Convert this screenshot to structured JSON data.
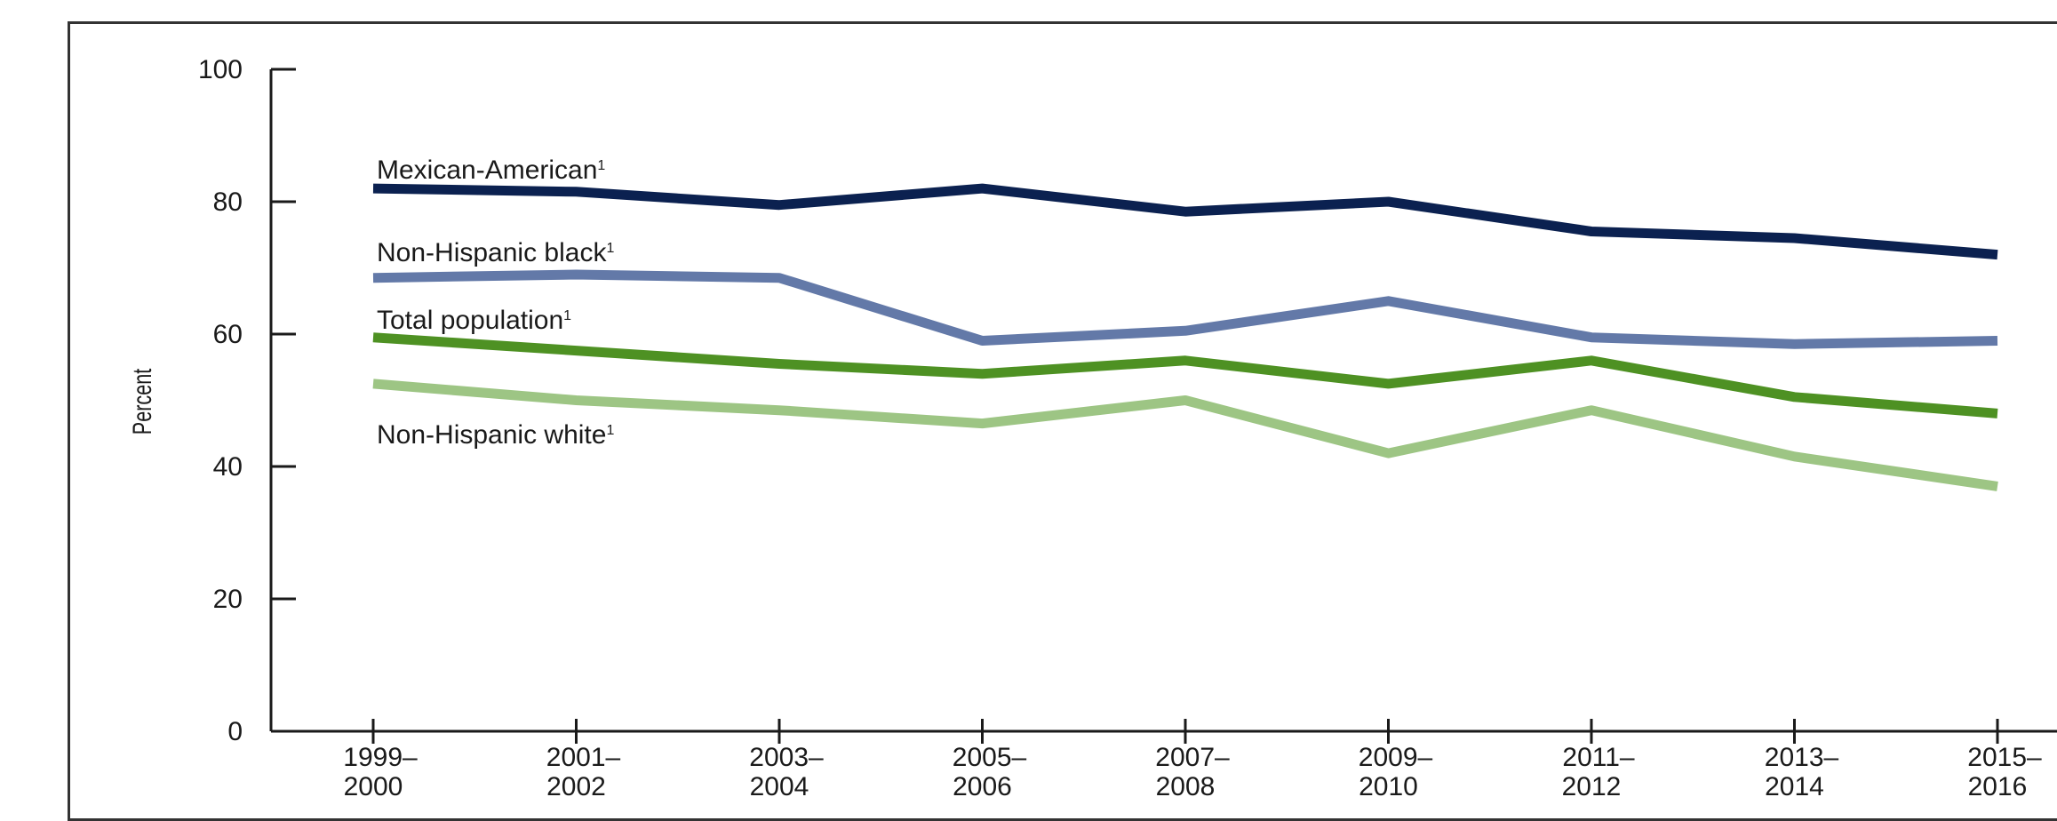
{
  "chart_data": {
    "type": "line",
    "title": "",
    "xlabel": "",
    "ylabel": "Percent",
    "ylim": [
      0,
      100
    ],
    "yticks": [
      "0",
      "20",
      "40",
      "60",
      "80",
      "100"
    ],
    "categories": [
      [
        "1999–",
        "2000"
      ],
      [
        "2001–",
        "2002"
      ],
      [
        "2003–",
        "2004"
      ],
      [
        "2005–",
        "2006"
      ],
      [
        "2007–",
        "2008"
      ],
      [
        "2009–",
        "2010"
      ],
      [
        "2011–",
        "2012"
      ],
      [
        "2013–",
        "2014"
      ],
      [
        "2015–",
        "2016"
      ]
    ],
    "grid": false,
    "series": [
      {
        "name": "Mexican-American",
        "marker": "1",
        "color": "#0b2150",
        "values": [
          82,
          81.5,
          79.5,
          82,
          78.5,
          80,
          75.5,
          74.5,
          72
        ]
      },
      {
        "name": "Non-Hispanic black",
        "marker": "1",
        "color": "#6379a8",
        "values": [
          68.5,
          69,
          68.5,
          59,
          60.5,
          65,
          59.5,
          58.5,
          59
        ]
      },
      {
        "name": "Total population",
        "marker": "1",
        "color": "#4e9123",
        "values": [
          59.5,
          57.5,
          55.5,
          54,
          56,
          52.5,
          56,
          50.5,
          48
        ]
      },
      {
        "name": "Non-Hispanic white",
        "marker": "1",
        "color": "#9dc584",
        "values": [
          52.5,
          50,
          48.5,
          46.5,
          50,
          42,
          48.5,
          41.5,
          37
        ]
      }
    ]
  }
}
